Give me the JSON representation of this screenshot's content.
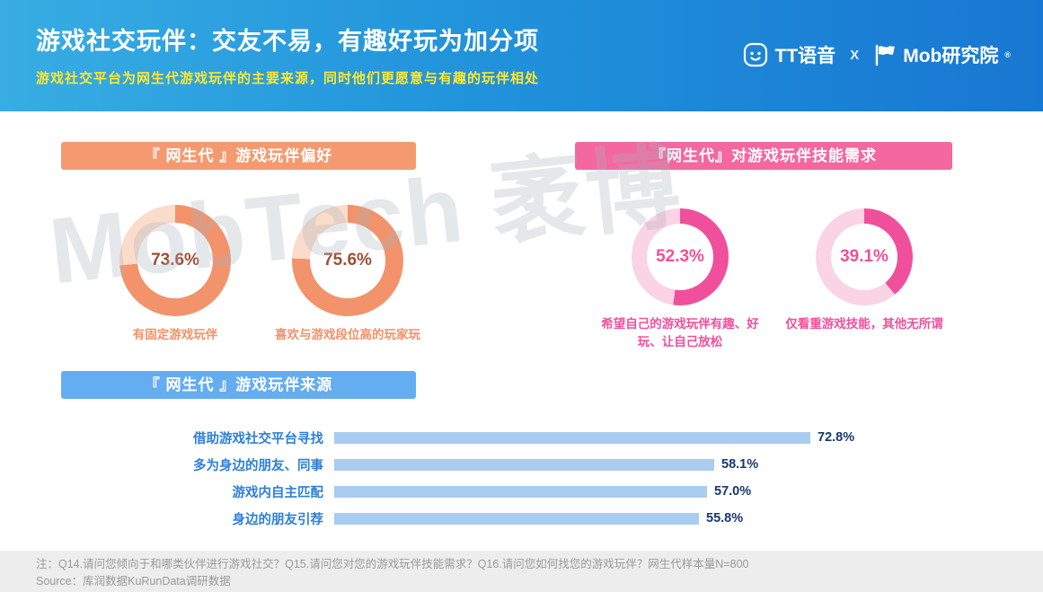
{
  "header": {
    "title": "游戏社交玩伴：交友不易，有趣好玩为加分项",
    "subtitle": "游戏社交平台为网生代游戏玩伴的主要来源，同时他们更愿意与有趣的玩伴相处",
    "brand_left": "TT语音",
    "brand_sep": "X",
    "brand_right": "Mob研究院",
    "brand_right_mark": "®"
  },
  "watermark": "MobTech 袤博",
  "chart_data": [
    {
      "type": "pie",
      "title": "『 网生代 』游戏玩伴偏好",
      "fill": "#F2936C",
      "track": "#FBDCCB",
      "donuts": [
        {
          "label": "有固定游戏玩伴",
          "value": 73.6,
          "display": "73.6%"
        },
        {
          "label": "喜欢与游戏段位高的玩家玩",
          "value": 75.6,
          "display": "75.6%"
        }
      ]
    },
    {
      "type": "pie",
      "title": "『网生代』对游戏玩伴技能需求",
      "fill": "#F0509B",
      "track": "#FAD3E5",
      "donuts": [
        {
          "label": "希望自己的游戏玩伴有趣、好玩、让自己放松",
          "value": 52.3,
          "display": "52.3%"
        },
        {
          "label": "仅看重游戏技能，其他无所谓",
          "value": 39.1,
          "display": "39.1%"
        }
      ]
    },
    {
      "type": "bar",
      "orientation": "horizontal",
      "title": "『 网生代 』游戏玩伴来源",
      "categories": [
        "借助游戏社交平台寻找",
        "多为身边的朋友、同事",
        "游戏内自主匹配",
        "身边的朋友引荐"
      ],
      "values": [
        72.8,
        58.1,
        57.0,
        55.8
      ],
      "value_labels": [
        "72.8%",
        "58.1%",
        "57.0%",
        "55.8%"
      ],
      "xlim": [
        0,
        80
      ],
      "bar_color": "#A9CCF0",
      "category_color": "#2E7FD8",
      "value_color": "#16396D"
    }
  ],
  "footer": {
    "note": "注：Q14.请问您倾向于和哪类伙伴进行游戏社交？Q15.请问您对您的游戏玩伴技能需求？Q16.请问您如何找您的游戏玩伴？网生代样本量N=800",
    "source": "Source：库润数据KuRunData调研数据"
  }
}
